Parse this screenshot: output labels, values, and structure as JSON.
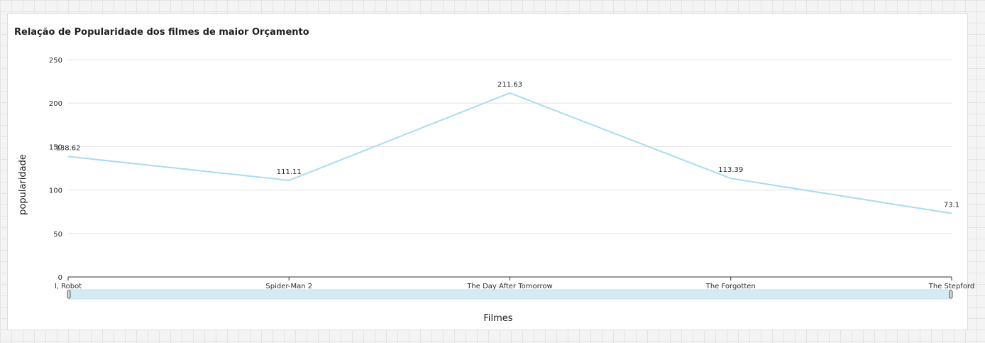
{
  "chart_data": {
    "type": "line",
    "title": "Relação de Popularidade dos filmes de maior Orçamento",
    "xlabel": "Filmes",
    "ylabel": "popularidade",
    "categories": [
      "I, Robot",
      "Spider-Man 2",
      "The Day After Tomorrow",
      "The Forgotten",
      "The Stepford"
    ],
    "series": [
      {
        "values": [
          138.62,
          111.11,
          211.63,
          113.39,
          73.1
        ]
      }
    ],
    "data_labels": [
      "138.62",
      "111.11",
      "211.63",
      "113.39",
      "73.1"
    ],
    "ylim": [
      0,
      250
    ],
    "yticks": [
      "0",
      "50",
      "100",
      "150",
      "200",
      "250"
    ],
    "grid": true,
    "line_color": "#a8dcef",
    "scrollbar_color": "#d3ebf5"
  }
}
